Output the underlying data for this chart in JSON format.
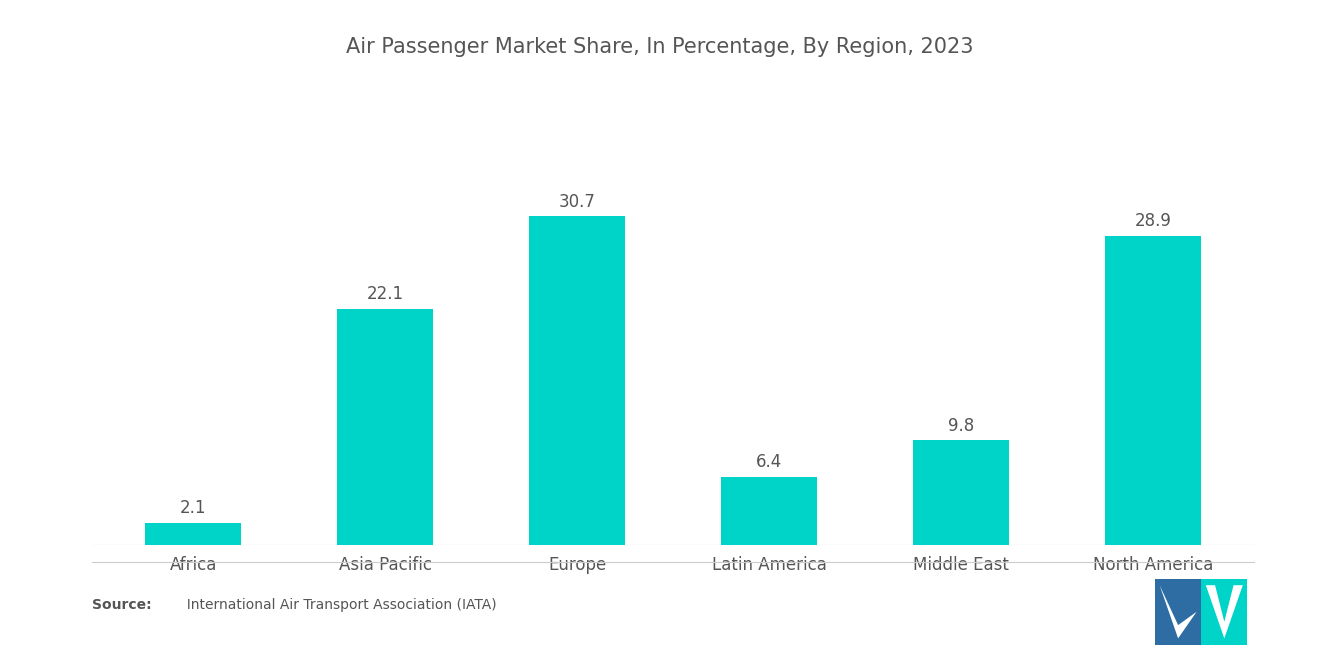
{
  "title": "Air Passenger Market Share, In Percentage, By Region, 2023",
  "categories": [
    "Africa",
    "Asia Pacific",
    "Europe",
    "Latin America",
    "Middle East",
    "North America"
  ],
  "values": [
    2.1,
    22.1,
    30.7,
    6.4,
    9.8,
    28.9
  ],
  "bar_color": "#00D4C8",
  "background_color": "#ffffff",
  "title_fontsize": 15,
  "label_fontsize": 12,
  "value_fontsize": 12,
  "source_bold": "Source:",
  "source_normal": "  International Air Transport Association (IATA)",
  "ylim": [
    0,
    36
  ],
  "bar_width": 0.5,
  "logo_color_left": "#2E6DA4",
  "logo_color_right": "#00D4C8"
}
